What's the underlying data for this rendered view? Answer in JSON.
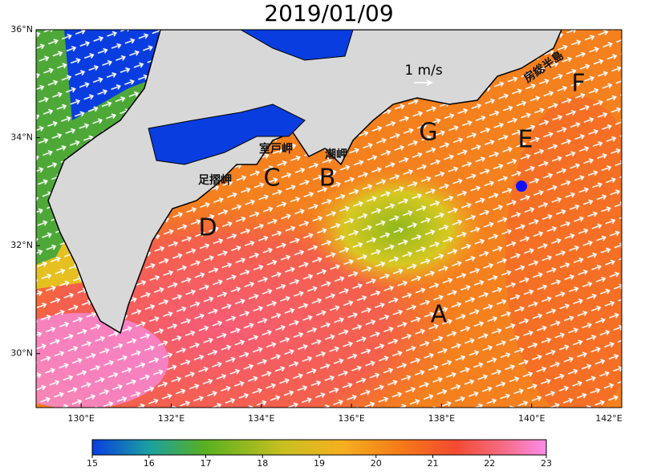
{
  "title": "2019/01/09",
  "map": {
    "xlim": [
      129,
      142
    ],
    "ylim": [
      29,
      36
    ],
    "xticks": [
      {
        "value": 130,
        "label": "130°E"
      },
      {
        "value": 132,
        "label": "132°E"
      },
      {
        "value": 134,
        "label": "134°E"
      },
      {
        "value": 136,
        "label": "136°E"
      },
      {
        "value": 138,
        "label": "138°E"
      },
      {
        "value": 140,
        "label": "140°E"
      },
      {
        "value": 142,
        "label": "142°E"
      }
    ],
    "yticks": [
      {
        "value": 30,
        "label": "30°N"
      },
      {
        "value": 32,
        "label": "32°N"
      },
      {
        "value": 34,
        "label": "34°N"
      },
      {
        "value": 36,
        "label": "36°N"
      }
    ]
  },
  "scale_label": "1 m/s",
  "labels": [
    "A",
    "B",
    "C",
    "D",
    "E",
    "F",
    "G"
  ],
  "places": [
    "室戸岬",
    "足摺岬",
    "潮岬",
    "房総半島"
  ],
  "colorbar": {
    "range": [
      15,
      23
    ],
    "ticks": [
      15,
      16,
      17,
      18,
      19,
      20,
      21,
      22,
      23
    ]
  }
}
